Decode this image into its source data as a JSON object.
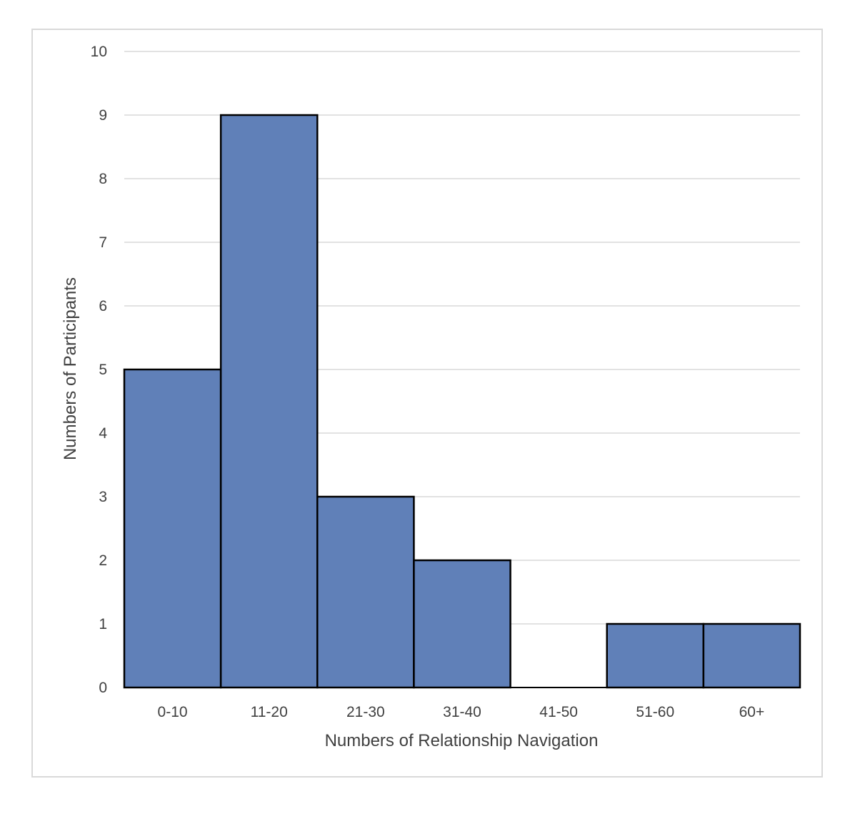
{
  "chart_data": {
    "type": "bar",
    "title": "",
    "xlabel": "Numbers of Relationship Navigation",
    "ylabel": "Numbers of Participants",
    "categories": [
      "0-10",
      "11-20",
      "21-30",
      "31-40",
      "41-50",
      "51-60",
      "60+"
    ],
    "values": [
      5,
      9,
      3,
      2,
      0,
      1,
      1
    ],
    "ylim": [
      0,
      10
    ],
    "yticks": [
      "0",
      "1",
      "2",
      "3",
      "4",
      "5",
      "6",
      "7",
      "8",
      "9",
      "10"
    ],
    "grid": true,
    "legend": "none",
    "colors": {
      "bar_fill": "#6080b8",
      "bar_stroke": "#000000",
      "grid": "#d9d9d9",
      "text": "#404040"
    }
  }
}
